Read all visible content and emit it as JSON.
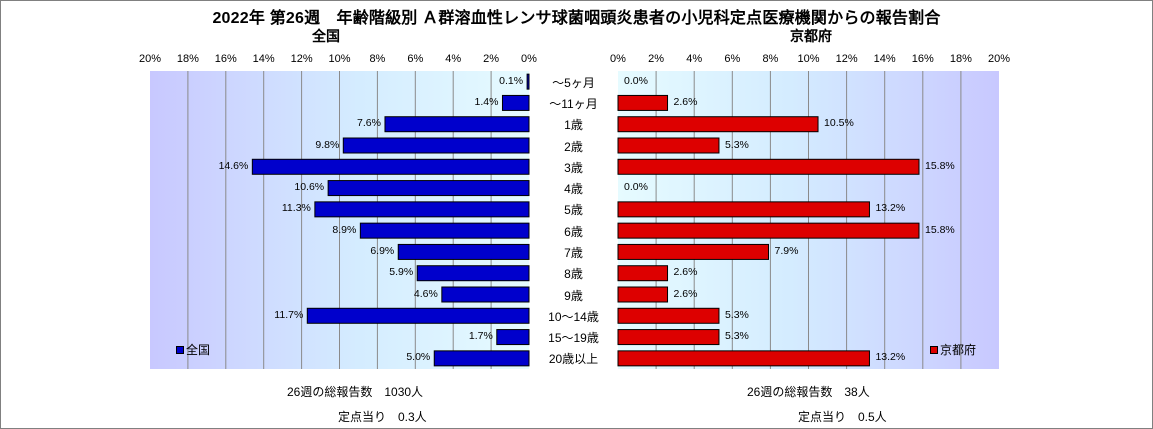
{
  "title": "2022年 第26週　年齢階級別 Ａ群溶血性レンサ球菌咽頭炎患者の小児科定点医療機関からの報告割合",
  "colors": {
    "national": "#0000cc",
    "kyoto": "#dd0000"
  },
  "chart_data": [
    {
      "type": "bar",
      "orientation": "horizontal-reversed",
      "title": "全国",
      "categories": [
        "～5ヶ月",
        "～11ヶ月",
        "1歳",
        "2歳",
        "3歳",
        "4歳",
        "5歳",
        "6歳",
        "7歳",
        "8歳",
        "9歳",
        "10～14歳",
        "15～19歳",
        "20歳以上"
      ],
      "series": [
        {
          "name": "全国",
          "values": [
            0.1,
            1.4,
            7.6,
            9.8,
            14.6,
            10.6,
            11.3,
            8.9,
            6.9,
            5.9,
            4.6,
            11.7,
            1.7,
            5.0
          ]
        }
      ],
      "value_labels": [
        "0.1%",
        "1.4%",
        "7.6%",
        "9.8%",
        "14.6%",
        "10.6%",
        "11.3%",
        "8.9%",
        "6.9%",
        "5.9%",
        "4.6%",
        "11.7%",
        "1.7%",
        "5.0%"
      ],
      "xlim": [
        0,
        20
      ],
      "x_ticks": [
        "20%",
        "18%",
        "16%",
        "14%",
        "12%",
        "10%",
        "8%",
        "6%",
        "4%",
        "2%",
        "0%"
      ],
      "grid": true,
      "legend_position": "bottom-left"
    },
    {
      "type": "bar",
      "orientation": "horizontal",
      "title": "京都府",
      "categories": [
        "～5ヶ月",
        "～11ヶ月",
        "1歳",
        "2歳",
        "3歳",
        "4歳",
        "5歳",
        "6歳",
        "7歳",
        "8歳",
        "9歳",
        "10～14歳",
        "15～19歳",
        "20歳以上"
      ],
      "series": [
        {
          "name": "京都府",
          "values": [
            0.0,
            2.6,
            10.5,
            5.3,
            15.8,
            0.0,
            13.2,
            15.8,
            7.9,
            2.6,
            2.6,
            5.3,
            5.3,
            13.2
          ]
        }
      ],
      "value_labels": [
        "0.0%",
        "2.6%",
        "10.5%",
        "5.3%",
        "15.8%",
        "0.0%",
        "13.2%",
        "15.8%",
        "7.9%",
        "2.6%",
        "2.6%",
        "5.3%",
        "5.3%",
        "13.2%"
      ],
      "xlim": [
        0,
        20
      ],
      "x_ticks": [
        "0%",
        "2%",
        "4%",
        "6%",
        "8%",
        "10%",
        "12%",
        "14%",
        "16%",
        "18%",
        "20%"
      ],
      "grid": true,
      "legend_position": "bottom-right"
    }
  ],
  "footer": {
    "national_total": "26週の総報告数　1030人",
    "national_per_site": "定点当り　0.3人",
    "kyoto_total": "26週の総報告数　38人",
    "kyoto_per_site": "定点当り　0.5人"
  }
}
